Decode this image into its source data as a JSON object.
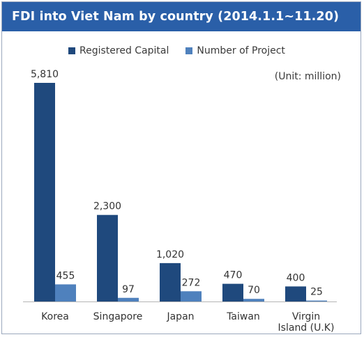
{
  "colors": {
    "header": "#2a5fa8",
    "registered": "#1f497d",
    "projects": "#4f81bd"
  },
  "chart_data": {
    "type": "bar",
    "title": "FDI into Viet Nam by country (2014.1.1~11.20)",
    "unit": "(Unit: million)",
    "categories": [
      "Korea",
      "Singapore",
      "Japan",
      "Taiwan",
      [
        "Virgin",
        "Island (U.K)"
      ]
    ],
    "series": [
      {
        "name": "Registered Capital",
        "values": [
          5810,
          2300,
          1020,
          470,
          400
        ],
        "labels": [
          "5,810",
          "2,300",
          "1,020",
          "470",
          "400"
        ]
      },
      {
        "name": "Number of Project",
        "values": [
          455,
          97,
          272,
          70,
          25
        ],
        "labels": [
          "455",
          "97",
          "272",
          "70",
          "25"
        ]
      }
    ],
    "ylim": [
      0,
      5810
    ],
    "grid": false,
    "legend": "top"
  }
}
